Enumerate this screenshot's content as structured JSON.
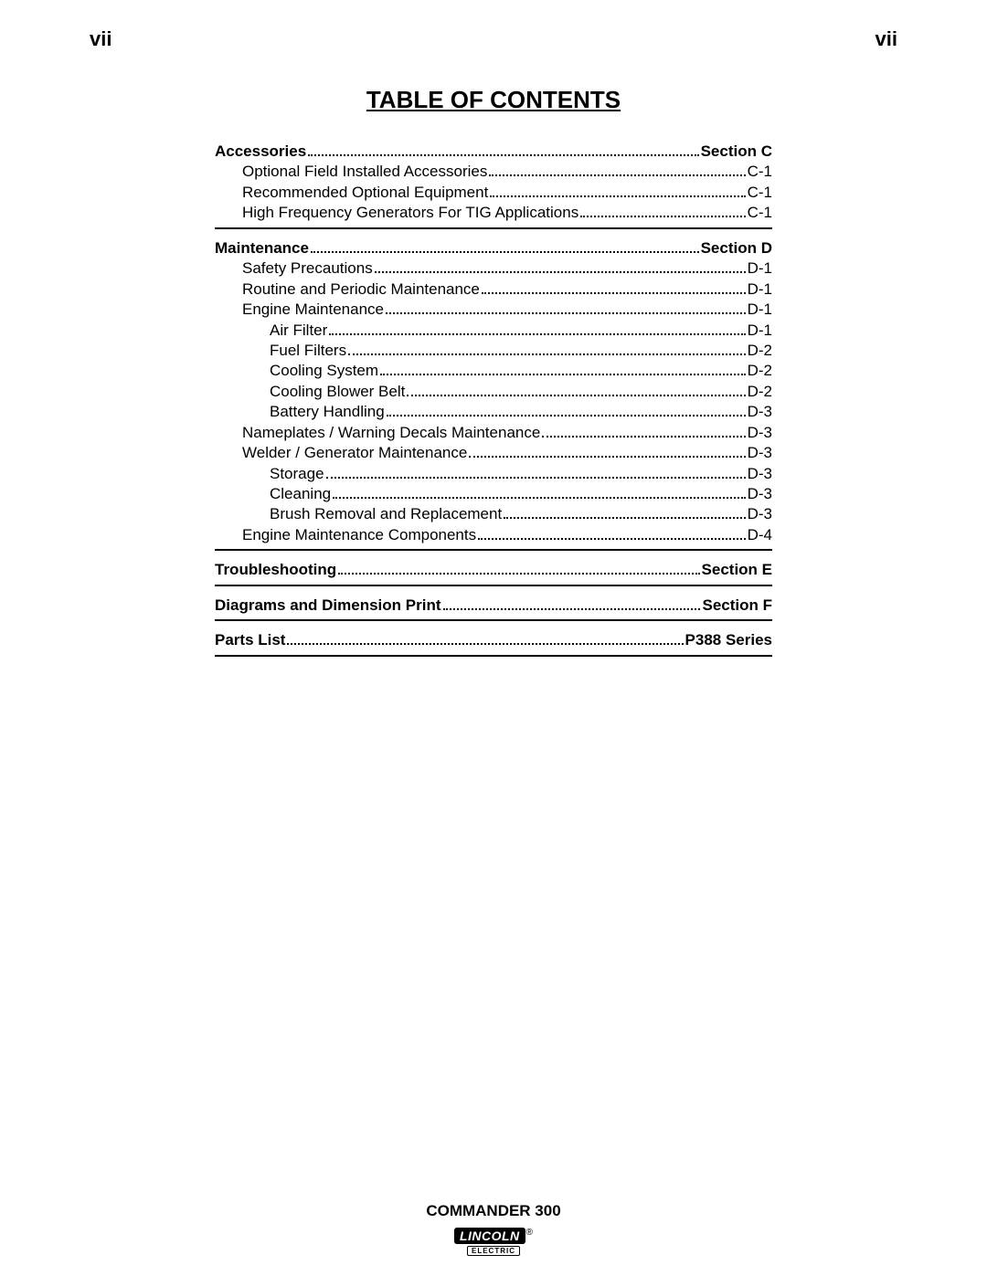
{
  "page_number_left": "vii",
  "page_number_right": "vii",
  "title": " TABLE OF CONTENTS",
  "sections": [
    {
      "header": {
        "label": "Accessories",
        "page": "Section C"
      },
      "items": [
        {
          "label": "Optional Field Installed Accessories",
          "page": "C-1",
          "indent": 1
        },
        {
          "label": "Recommended Optional Equipment",
          "page": "C-1",
          "indent": 1
        },
        {
          "label": "High Frequency Generators For TIG Applications",
          "page": "C-1",
          "indent": 1
        }
      ]
    },
    {
      "header": {
        "label": "Maintenance",
        "page": "Section D"
      },
      "items": [
        {
          "label": "Safety Precautions",
          "page": "D-1",
          "indent": 1
        },
        {
          "label": "Routine and Periodic Maintenance",
          "page": "D-1",
          "indent": 1
        },
        {
          "label": "Engine Maintenance",
          "page": "D-1",
          "indent": 1
        },
        {
          "label": "Air Filter",
          "page": "D-1",
          "indent": 2
        },
        {
          "label": "Fuel Filters",
          "page": "D-2",
          "indent": 2
        },
        {
          "label": "Cooling System",
          "page": "D-2",
          "indent": 2
        },
        {
          "label": "Cooling Blower Belt",
          "page": "D-2",
          "indent": 2
        },
        {
          "label": "Battery Handling",
          "page": "D-3",
          "indent": 2
        },
        {
          "label": "Nameplates / Warning Decals Maintenance",
          "page": "D-3",
          "indent": 1
        },
        {
          "label": "Welder / Generator Maintenance",
          "page": "D-3",
          "indent": 1
        },
        {
          "label": "Storage",
          "page": "D-3",
          "indent": 2
        },
        {
          "label": "Cleaning",
          "page": "D-3",
          "indent": 2
        },
        {
          "label": "Brush Removal and Replacement",
          "page": "D-3",
          "indent": 2
        },
        {
          "label": "Engine Maintenance Components",
          "page": "D-4",
          "indent": 1
        }
      ]
    },
    {
      "header": {
        "label": "Troubleshooting",
        "page": "Section E"
      },
      "items": []
    },
    {
      "header": {
        "label": "Diagrams and Dimension Print",
        "page": "Section F"
      },
      "items": []
    },
    {
      "header": {
        "label": "Parts List",
        "page": "P388 Series"
      },
      "items": []
    }
  ],
  "footer": {
    "product": "COMMANDER 300",
    "brand_top": "LINCOLN",
    "brand_reg": "®",
    "brand_bot": "ELECTRIC"
  }
}
